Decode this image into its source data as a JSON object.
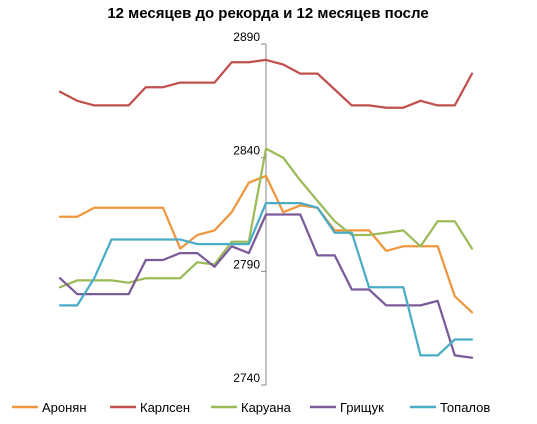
{
  "chart_data": {
    "type": "line",
    "title": "12 месяцев до рекорда и 12 месяцев после",
    "xlabel": "",
    "ylabel": "",
    "x": [
      -12,
      -11,
      -10,
      -9,
      -8,
      -7,
      -6,
      -5,
      -4,
      -3,
      -2,
      -1,
      0,
      1,
      2,
      3,
      4,
      5,
      6,
      7,
      8,
      9,
      10,
      11,
      12
    ],
    "ylim": [
      2740,
      2890
    ],
    "yticks": [
      2740,
      2790,
      2840,
      2890
    ],
    "grid": false,
    "legend": "bottom",
    "series": [
      {
        "name": "Аронян",
        "color": "#f0963e",
        "values": [
          2814,
          2814,
          2818,
          2818,
          2818,
          2818,
          2818,
          2800,
          2806,
          2808,
          2816,
          2829,
          2832,
          2816,
          2819,
          2818,
          2808,
          2808,
          2808,
          2799,
          2801,
          2801,
          2801,
          2779,
          2772
        ]
      },
      {
        "name": "Карлсен",
        "color": "#c0504d",
        "values": [
          2869,
          2865,
          2863,
          2863,
          2863,
          2871,
          2871,
          2873,
          2873,
          2873,
          2882,
          2882,
          2883,
          2881,
          2877,
          2877,
          2870,
          2863,
          2863,
          2862,
          2862,
          2865,
          2863,
          2863,
          2877
        ]
      },
      {
        "name": "Каруана",
        "color": "#9bbb59",
        "values": [
          2783,
          2786,
          2786,
          2786,
          2785,
          2787,
          2787,
          2787,
          2794,
          2793,
          2803,
          2803,
          2844,
          2840,
          2830,
          2821,
          2812,
          2806,
          2806,
          2807,
          2808,
          2801,
          2812,
          2812,
          2800
        ]
      },
      {
        "name": "Грищук",
        "color": "#7b5a9a",
        "values": [
          2787,
          2780,
          2780,
          2780,
          2780,
          2795,
          2795,
          2798,
          2798,
          2792,
          2801,
          2798,
          2815,
          2815,
          2815,
          2797,
          2797,
          2782,
          2782,
          2775,
          2775,
          2775,
          2777,
          2753,
          2752
        ]
      },
      {
        "name": "Топалов",
        "color": "#4bacc6",
        "values": [
          2775,
          2775,
          2787,
          2804,
          2804,
          2804,
          2804,
          2804,
          2802,
          2802,
          2802,
          2802,
          2820,
          2820,
          2820,
          2818,
          2807,
          2807,
          2783,
          2783,
          2783,
          2753,
          2753,
          2760,
          2760
        ]
      }
    ]
  }
}
